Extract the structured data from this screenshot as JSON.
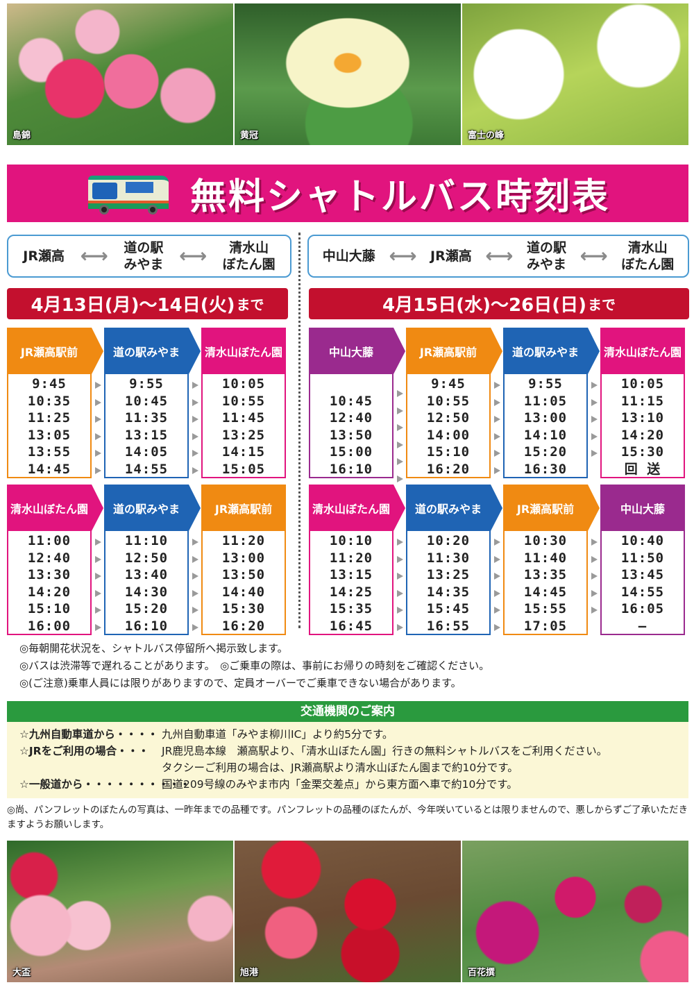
{
  "photos_top": [
    {
      "caption": "島錦",
      "cls": "p1"
    },
    {
      "caption": "黄冠",
      "cls": "p2"
    },
    {
      "caption": "富士の峰",
      "cls": "p3"
    }
  ],
  "title": {
    "text": "無料シャトルバス時刻表",
    "icon": "bus-icon",
    "bg_color": "#e1147e"
  },
  "left": {
    "route": [
      "JR瀬高",
      "道の駅\nみやま",
      "清水山\nぼたん園"
    ],
    "arrow": "⟷",
    "date": "4月13日(月)～14日(火)",
    "date_suffix": "まで",
    "outbound": {
      "headers": [
        "JR瀬高駅前",
        "道の駅みやま",
        "清水山ぼたん園"
      ],
      "colors": [
        "#f08a12",
        "#1f64b4",
        "#e1147e"
      ],
      "rows": [
        [
          "9:45",
          "9:55",
          "10:05"
        ],
        [
          "10:35",
          "10:45",
          "10:55"
        ],
        [
          "11:25",
          "11:35",
          "11:45"
        ],
        [
          "13:05",
          "13:15",
          "13:25"
        ],
        [
          "13:55",
          "14:05",
          "14:15"
        ],
        [
          "14:45",
          "14:55",
          "15:05"
        ]
      ]
    },
    "inbound": {
      "headers": [
        "清水山ぼたん園",
        "道の駅みやま",
        "JR瀬高駅前"
      ],
      "colors": [
        "#e1147e",
        "#1f64b4",
        "#f08a12"
      ],
      "rows": [
        [
          "11:00",
          "11:10",
          "11:20"
        ],
        [
          "12:40",
          "12:50",
          "13:00"
        ],
        [
          "13:30",
          "13:40",
          "13:50"
        ],
        [
          "14:20",
          "14:30",
          "14:40"
        ],
        [
          "15:10",
          "15:20",
          "15:30"
        ],
        [
          "16:00",
          "16:10",
          "16:20"
        ]
      ]
    }
  },
  "right": {
    "route": [
      "中山大藤",
      "JR瀬高",
      "道の駅\nみやま",
      "清水山\nぼたん園"
    ],
    "arrow": "⟷",
    "date": "4月15日(水)～26日(日)",
    "date_suffix": "まで",
    "outbound": {
      "headers": [
        "中山大藤",
        "JR瀬高駅前",
        "道の駅みやま",
        "清水山ぼたん園"
      ],
      "colors": [
        "#9a2a8e",
        "#f08a12",
        "#1f64b4",
        "#e1147e"
      ],
      "rows": [
        [
          "",
          "9:45",
          "9:55",
          "10:05"
        ],
        [
          "10:45",
          "10:55",
          "11:05",
          "11:15"
        ],
        [
          "12:40",
          "12:50",
          "13:00",
          "13:10"
        ],
        [
          "13:50",
          "14:00",
          "14:10",
          "14:20"
        ],
        [
          "15:00",
          "15:10",
          "15:20",
          "15:30"
        ],
        [
          "16:10",
          "16:20",
          "16:30",
          "回 送"
        ]
      ]
    },
    "inbound": {
      "headers": [
        "清水山ぼたん園",
        "道の駅みやま",
        "JR瀬高駅前",
        "中山大藤"
      ],
      "colors": [
        "#e1147e",
        "#1f64b4",
        "#f08a12",
        "#9a2a8e"
      ],
      "rows": [
        [
          "10:10",
          "10:20",
          "10:30",
          "10:40"
        ],
        [
          "11:20",
          "11:30",
          "11:40",
          "11:50"
        ],
        [
          "13:15",
          "13:25",
          "13:35",
          "13:45"
        ],
        [
          "14:25",
          "14:35",
          "14:45",
          "14:55"
        ],
        [
          "15:35",
          "15:45",
          "15:55",
          "16:05"
        ],
        [
          "16:45",
          "16:55",
          "17:05",
          "—"
        ]
      ]
    }
  },
  "notes": [
    "◎毎朝開花状況を、シャトルバス停留所へ掲示致します。",
    "◎バスは渋滞等で遅れることがあります。　◎ご乗車の際は、事前にお帰りの時刻をご確認ください。",
    "◎(ご注意)乗車人員には限りがありますので、定員オーバーでご乗車できない場合があります。"
  ],
  "access": {
    "title": "交通機関のご案内",
    "rows": [
      {
        "label": "☆九州自動車道から・・・・",
        "text": "九州自動車道「みやま柳川IC」より約5分です。"
      },
      {
        "label": "☆JRをご利用の場合・・・",
        "text": "JR鹿児島本線　瀬高駅より、「清水山ぼたん園」行きの無料シャトルバスをご利用ください。"
      },
      {
        "label": "",
        "text": "タクシーご利用の場合は、JR瀬高駅より清水山ぼたん園まで約10分です。"
      },
      {
        "label": "☆一般道から・・・・・・・・・・",
        "text": "国道209号線のみやま市内「金栗交差点」から東方面へ車で約10分です。"
      }
    ]
  },
  "footer_note": "◎尚、パンフレットのぼたんの写真は、一昨年までの品種です。パンフレットの品種のぼたんが、今年咲いているとは限りませんので、悪しからずご了承いただきますようお願いします。",
  "photos_bottom": [
    {
      "caption": "大盃",
      "cls": "p4"
    },
    {
      "caption": "旭港",
      "cls": "p5"
    },
    {
      "caption": "百花撰",
      "cls": "p6"
    }
  ]
}
